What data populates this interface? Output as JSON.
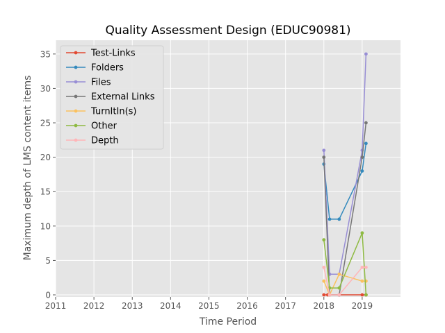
{
  "chart_data": {
    "type": "line",
    "title": "Quality Assessment Design (EDUC90981)",
    "xlabel": "Time Period",
    "ylabel": "Maximum depth of LMS content items",
    "xlim": [
      2011.0,
      2020.0
    ],
    "ylim": [
      -0.3,
      37
    ],
    "xticks": [
      2011,
      2012,
      2013,
      2014,
      2015,
      2016,
      2017,
      2018,
      2019
    ],
    "xtick_labels": [
      "2011",
      "2012",
      "2013",
      "2014",
      "2015",
      "2016",
      "2017",
      "2018",
      "2019"
    ],
    "yticks": [
      0,
      5,
      10,
      15,
      20,
      25,
      30,
      35
    ],
    "ytick_labels": [
      "0",
      "5",
      "10",
      "15",
      "20",
      "25",
      "30",
      "35"
    ],
    "grid": true,
    "legend_position": "upper-left",
    "series": [
      {
        "name": "Test-Links",
        "color": "#E24A33",
        "x": [
          2018.0,
          2018.1,
          2018.4,
          2019.0,
          2019.1
        ],
        "y": [
          0,
          0,
          0,
          0,
          0
        ]
      },
      {
        "name": "Folders",
        "color": "#348ABD",
        "x": [
          2018.0,
          2018.15,
          2018.4,
          2019.0,
          2019.1
        ],
        "y": [
          19,
          11,
          11,
          18,
          22
        ]
      },
      {
        "name": "Files",
        "color": "#988ED5",
        "x": [
          2018.0,
          2018.15,
          2018.4,
          2019.0,
          2019.1
        ],
        "y": [
          21,
          3,
          3,
          21,
          35
        ]
      },
      {
        "name": "External Links",
        "color": "#777777",
        "x": [
          2018.0,
          2018.15,
          2018.4,
          2019.0,
          2019.1
        ],
        "y": [
          20,
          0,
          0,
          20,
          25
        ]
      },
      {
        "name": "TurnItIn(s)",
        "color": "#FBC15E",
        "x": [
          2018.0,
          2018.15,
          2018.4,
          2019.0,
          2019.1
        ],
        "y": [
          2,
          0,
          3,
          2,
          2
        ]
      },
      {
        "name": "Other",
        "color": "#8EBA42",
        "x": [
          2018.0,
          2018.15,
          2018.4,
          2019.0,
          2019.1
        ],
        "y": [
          8,
          1,
          1,
          9,
          0
        ]
      },
      {
        "name": "Depth",
        "color": "#FFB5B8",
        "x": [
          2018.0,
          2018.15,
          2018.4,
          2019.0,
          2019.1
        ],
        "y": [
          4,
          0,
          0,
          4,
          4
        ]
      }
    ]
  }
}
